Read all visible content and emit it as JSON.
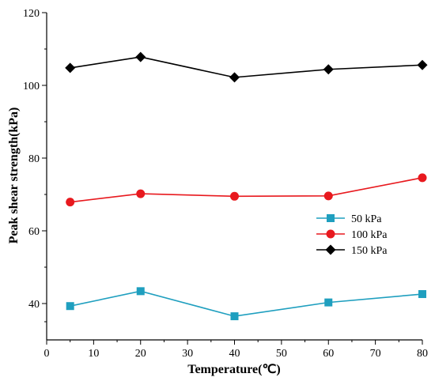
{
  "chart_data": {
    "type": "line",
    "xlabel": "Temperature(℃)",
    "ylabel": "Peak shear strength(kPa)",
    "xlim": [
      0,
      80
    ],
    "ylim": [
      30,
      120
    ],
    "xticks": [
      0,
      10,
      20,
      30,
      40,
      50,
      60,
      70,
      80
    ],
    "yticks": [
      40,
      60,
      80,
      100,
      120
    ],
    "grid": false,
    "legend_position": "right-middle",
    "x": [
      5,
      20,
      40,
      60,
      80
    ],
    "series": [
      {
        "name": "50 kPa",
        "values": [
          39.3,
          43.4,
          36.5,
          40.3,
          42.6
        ],
        "color": "#1f9fbf",
        "marker": "square"
      },
      {
        "name": "100 kPa",
        "values": [
          67.9,
          70.2,
          69.5,
          69.6,
          74.6
        ],
        "color": "#e8191e",
        "marker": "circle"
      },
      {
        "name": "150 kPa",
        "values": [
          104.8,
          107.8,
          102.2,
          104.4,
          105.6
        ],
        "color": "#000000",
        "marker": "diamond"
      }
    ]
  }
}
